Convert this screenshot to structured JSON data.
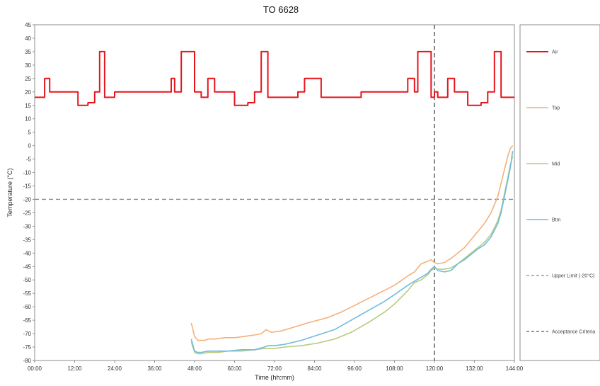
{
  "chart_data": {
    "type": "line",
    "title": "TO 6628",
    "xlabel": "Time (hh:mm)",
    "ylabel": "Temperature (°C)",
    "xlim": [
      0,
      144
    ],
    "ylim": [
      -80,
      45
    ],
    "x_ticks": [
      0,
      12,
      24,
      36,
      48,
      60,
      72,
      84,
      96,
      108,
      120,
      132,
      144
    ],
    "x_tick_labels": [
      "00:00",
      "12:00",
      "24:00",
      "36:00",
      "48:00",
      "60:00",
      "72:00",
      "84:00",
      "96:00",
      "108:00",
      "120:00",
      "132:00",
      "144:00"
    ],
    "y_ticks": [
      45,
      40,
      35,
      30,
      25,
      20,
      15,
      10,
      5,
      0,
      -5,
      -10,
      -15,
      -20,
      -25,
      -30,
      -35,
      -40,
      -45,
      -50,
      -55,
      -60,
      -65,
      -70,
      -75,
      -80
    ],
    "grid": false,
    "legend_position": "right",
    "series": [
      {
        "name": "Air",
        "color": "#e8141c",
        "x": [
          0,
          3,
          3,
          4.5,
          4.5,
          6,
          6,
          13,
          13,
          16,
          16,
          18,
          18,
          19.5,
          19.5,
          21,
          21,
          24,
          24,
          25,
          25,
          41,
          41,
          42,
          42,
          43,
          43,
          44,
          44,
          48,
          48,
          50,
          50,
          52,
          52,
          54,
          54,
          60,
          60,
          64,
          64,
          66,
          66,
          68,
          68,
          70,
          70,
          71,
          71,
          72,
          72,
          79,
          79,
          81,
          81,
          86,
          86,
          98,
          98,
          112,
          112,
          114,
          114,
          115,
          115,
          119,
          119,
          120,
          120,
          121,
          121,
          124,
          124,
          126,
          126,
          130,
          130,
          134,
          134,
          136,
          136,
          138,
          138,
          140,
          140,
          143,
          143,
          144
        ],
        "y": [
          18,
          18,
          25,
          25,
          20,
          20,
          20,
          20,
          15,
          15,
          16,
          16,
          20,
          20,
          35,
          35,
          18,
          18,
          20,
          20,
          20,
          20,
          25,
          25,
          20,
          20,
          20,
          20,
          35,
          35,
          20,
          20,
          18,
          18,
          25,
          25,
          20,
          20,
          15,
          15,
          16,
          16,
          20,
          20,
          35,
          35,
          18,
          18,
          18,
          18,
          18,
          18,
          20,
          20,
          25,
          25,
          18,
          18,
          20,
          20,
          25,
          25,
          20,
          20,
          35,
          35,
          18,
          18,
          20,
          20,
          18,
          18,
          25,
          25,
          20,
          20,
          15,
          15,
          16,
          16,
          20,
          20,
          35,
          35,
          18,
          18,
          18,
          18
        ]
      },
      {
        "name": "Top",
        "color": "#f5b07a",
        "x": [
          47,
          48,
          49,
          50,
          51,
          52,
          54,
          57,
          60,
          63,
          66,
          68,
          69.5,
          71,
          74,
          78,
          82,
          85,
          88,
          92,
          96,
          100,
          104,
          108,
          112,
          114,
          116,
          118,
          119,
          120,
          121,
          123,
          125,
          127,
          129,
          131,
          133,
          135,
          137,
          139,
          140,
          141,
          142,
          142.8,
          143.5
        ],
        "y": [
          -66,
          -71,
          -72.5,
          -72.5,
          -72.5,
          -72,
          -72,
          -71.5,
          -71.5,
          -71,
          -70.5,
          -70,
          -68.5,
          -69.5,
          -69,
          -67.5,
          -66,
          -65,
          -64,
          -62,
          -59.5,
          -57,
          -54.5,
          -52,
          -48.5,
          -47,
          -44,
          -43,
          -42.5,
          -43.5,
          -44,
          -43.5,
          -42,
          -40,
          -38,
          -35,
          -32,
          -29,
          -25,
          -19,
          -14,
          -9,
          -4,
          -1,
          0
        ]
      },
      {
        "name": "Mid",
        "color": "#b7cc7e",
        "x": [
          47,
          48,
          49,
          50,
          52,
          55,
          58,
          62,
          66,
          69,
          70,
          72,
          75,
          80,
          85,
          90,
          95,
          100,
          105,
          108,
          112,
          114,
          116,
          118,
          119,
          120,
          121,
          123,
          125,
          127,
          129,
          131,
          133,
          135,
          137,
          139,
          140,
          141,
          142,
          142.8,
          143.5
        ],
        "y": [
          -73,
          -77,
          -77.5,
          -77.5,
          -77,
          -77,
          -76.5,
          -76.5,
          -76,
          -75.5,
          -75.5,
          -75.5,
          -75,
          -74.5,
          -73.5,
          -72,
          -69.5,
          -66,
          -62,
          -59,
          -54,
          -51,
          -50,
          -48,
          -46.5,
          -45.5,
          -46,
          -46,
          -45.5,
          -44,
          -42,
          -40,
          -38,
          -36,
          -33,
          -28,
          -24,
          -18,
          -12,
          -7,
          -4
        ]
      },
      {
        "name": "Btm",
        "color": "#6fbcde",
        "x": [
          47,
          48,
          49,
          50,
          52,
          55,
          58,
          62,
          66,
          69,
          70,
          72,
          75,
          80,
          85,
          90,
          95,
          100,
          105,
          108,
          112,
          114,
          116,
          118,
          119,
          120,
          121,
          123,
          125,
          127,
          129,
          131,
          133,
          135,
          137,
          139,
          140,
          141,
          142,
          142.8,
          143.5
        ],
        "y": [
          -72,
          -76.5,
          -77,
          -77,
          -76.5,
          -76.5,
          -76.5,
          -76,
          -76,
          -75,
          -74.5,
          -74.5,
          -74,
          -72.5,
          -70.5,
          -68.5,
          -65,
          -61.5,
          -58,
          -55.5,
          -52,
          -50.5,
          -49,
          -47.5,
          -46,
          -45,
          -46.5,
          -47,
          -46.5,
          -44,
          -42.5,
          -40.5,
          -38.5,
          -37,
          -34,
          -29,
          -25,
          -19,
          -13,
          -8,
          -2
        ]
      }
    ],
    "reference_lines": [
      {
        "name": "Upper Limit (-20°C)",
        "orientation": "horizontal",
        "value": -20,
        "color": "#888888",
        "dash": "dashed"
      },
      {
        "name": "Acceptance Criteria",
        "orientation": "vertical",
        "value": 120,
        "color": "#555555",
        "dash": "dashed"
      }
    ]
  }
}
